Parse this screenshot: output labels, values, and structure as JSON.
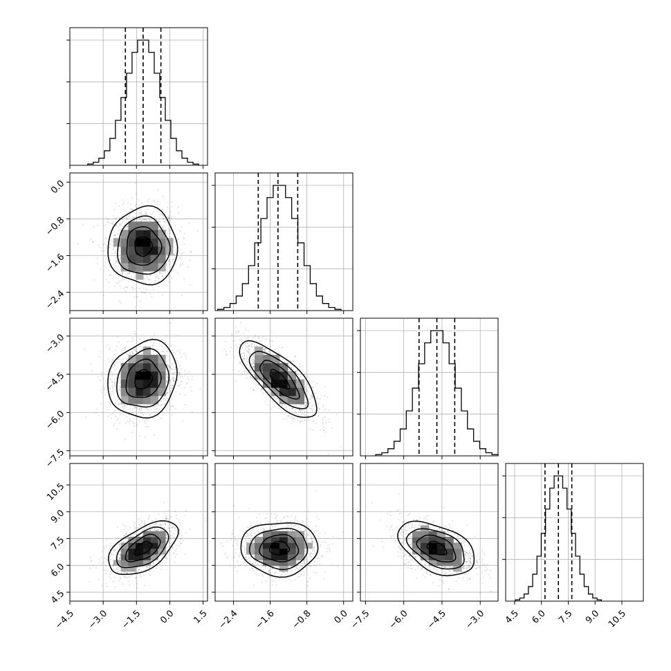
{
  "chart_data": {
    "type": "corner",
    "grid": true,
    "parameters": [
      {
        "ticks": [
          -4.5,
          -3.0,
          -1.5,
          0.0,
          1.5
        ],
        "tick_labels": [
          "−4.5",
          "−3.0",
          "−1.5",
          "0.0",
          "1.5"
        ],
        "range": [
          -4.5,
          1.7
        ],
        "mean": -1.2,
        "std": 0.78,
        "quantiles": [
          -2.0,
          -1.2,
          -0.4
        ]
      },
      {
        "ticks": [
          -2.4,
          -1.6,
          -0.8,
          0.0
        ],
        "tick_labels": [
          "−2.4",
          "−1.6",
          "−0.8",
          "0.0"
        ],
        "range": [
          -2.8,
          0.2
        ],
        "mean": -1.4,
        "std": 0.42,
        "quantiles": [
          -1.86,
          -1.43,
          -1.0
        ]
      },
      {
        "ticks": [
          -7.5,
          -6.0,
          -4.5,
          -3.0
        ],
        "tick_labels": [
          "−7.5",
          "−6.0",
          "−4.5",
          "−3.0"
        ],
        "range": [
          -7.7,
          -2.3
        ],
        "mean": -4.7,
        "std": 0.75,
        "quantiles": [
          -5.4,
          -4.7,
          -4.0
        ]
      },
      {
        "ticks": [
          4.5,
          6.0,
          7.5,
          9.0,
          10.5
        ],
        "tick_labels": [
          "4.5",
          "6.0",
          "7.5",
          "9.0",
          "10.5"
        ],
        "range": [
          4.0,
          11.7
        ],
        "mean": 6.95,
        "std": 0.75,
        "quantiles": [
          6.2,
          6.95,
          7.7
        ]
      }
    ],
    "correlations": {
      "1-0": 0.0,
      "2-0": 0.15,
      "2-1": -0.75,
      "3-0": 0.55,
      "3-1": 0.0,
      "3-2": -0.45
    },
    "histogram_bins": 20,
    "contour_levels_sigma": [
      0.5,
      1.0,
      1.5,
      2.0
    ]
  }
}
